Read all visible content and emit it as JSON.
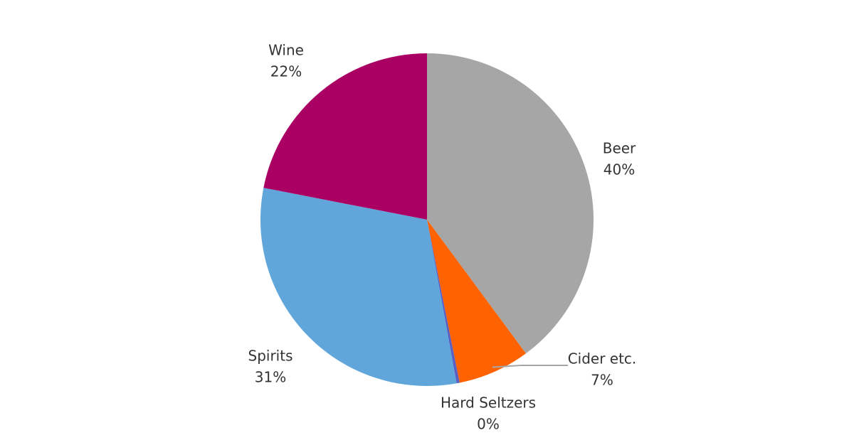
{
  "chart_data": {
    "type": "pie",
    "categories": [
      "Beer",
      "Cider etc.",
      "Hard Seltzers",
      "Spirits",
      "Wine"
    ],
    "values": [
      40,
      7,
      0.3,
      31,
      22
    ],
    "value_labels": [
      "40%",
      "7%",
      "0%",
      "31%",
      "22%"
    ],
    "colors": [
      "#a6a6a6",
      "#ff6200",
      "#5a5fc4",
      "#61a6da",
      "#aa0064"
    ]
  }
}
